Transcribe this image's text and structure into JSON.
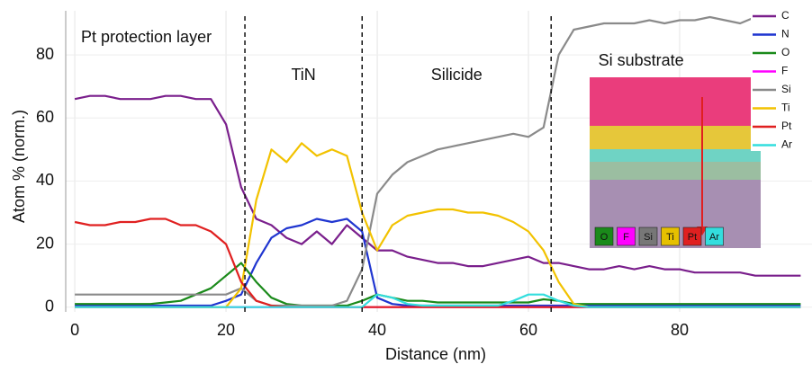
{
  "chart_data": {
    "type": "line",
    "x_label": "Distance (nm)",
    "y_label": "Atom % (norm.)",
    "xlim": [
      -1.2,
      97.5
    ],
    "ylim": [
      -1.5,
      94
    ],
    "xticks": [
      0,
      20,
      40,
      60,
      80
    ],
    "yticks": [
      0,
      20,
      40,
      60,
      80
    ],
    "grid": true,
    "legend": "top-right",
    "boundaries": [
      22.5,
      38,
      63
    ],
    "regions": [
      "Pt protection layer",
      "TiN",
      "Silicide",
      "Si substrate"
    ],
    "inset_labels": [
      "O",
      "F",
      "Si",
      "Ti",
      "Pt",
      "Ar"
    ],
    "x": [
      0,
      2,
      4,
      6,
      8,
      10,
      12,
      14,
      16,
      18,
      20,
      22,
      24,
      26,
      28,
      30,
      32,
      34,
      36,
      38,
      40,
      42,
      44,
      46,
      48,
      50,
      52,
      54,
      56,
      58,
      60,
      62,
      64,
      66,
      68,
      70,
      72,
      74,
      76,
      78,
      80,
      82,
      84,
      86,
      88,
      90,
      92,
      94,
      96
    ],
    "series": [
      {
        "name": "C",
        "color": "#7a1f8c",
        "values": [
          66,
          67,
          67,
          66,
          66,
          66,
          67,
          67,
          66,
          66,
          58,
          38,
          28,
          26,
          22,
          20,
          24,
          20,
          26,
          22,
          18,
          18,
          16,
          15,
          14,
          14,
          13,
          13,
          14,
          15,
          16,
          14,
          14,
          13,
          12,
          12,
          13,
          12,
          13,
          12,
          12,
          11,
          11,
          11,
          11,
          10,
          10,
          10,
          10
        ]
      },
      {
        "name": "N",
        "color": "#1f35d0",
        "values": [
          0.5,
          0.5,
          0.5,
          0.5,
          0.5,
          0.5,
          0.5,
          0.5,
          0.5,
          0.5,
          2,
          4,
          14,
          22,
          25,
          26,
          28,
          27,
          28,
          24,
          3,
          1,
          0.5,
          0.5,
          0.5,
          0.5,
          0.5,
          0.5,
          0.5,
          0.5,
          0.5,
          0.5,
          0.5,
          0.5,
          0.5,
          0.5,
          0.5,
          0.5,
          0.5,
          0.5,
          0.5,
          0.5,
          0.5,
          0.5,
          0.5,
          0.5,
          0.5,
          0.5,
          0.5
        ]
      },
      {
        "name": "O",
        "color": "#1a8a1a",
        "values": [
          1,
          1,
          1,
          1,
          1,
          1,
          1.5,
          2,
          4,
          6,
          10,
          14,
          8,
          3,
          1,
          0.5,
          0.5,
          0.5,
          0.5,
          2,
          4,
          3,
          2,
          2,
          1.5,
          1.5,
          1.5,
          1.5,
          1.5,
          1.5,
          1.5,
          2.5,
          2,
          1,
          1,
          1,
          1,
          1,
          1,
          1,
          1,
          1,
          1,
          1,
          1,
          1,
          1,
          1,
          1
        ]
      },
      {
        "name": "F",
        "color": "#ff00ff",
        "values": [
          0,
          0,
          0,
          0,
          0,
          0,
          0,
          0,
          0,
          0,
          0,
          0,
          0,
          0,
          0,
          0,
          0,
          0,
          0,
          0,
          0,
          0,
          0,
          0,
          0,
          0,
          0,
          0,
          0,
          0,
          0,
          0,
          0,
          0,
          0,
          0,
          0,
          0,
          0,
          0,
          0,
          0,
          0,
          0,
          0,
          0,
          0,
          0,
          0
        ]
      },
      {
        "name": "Si",
        "color": "#8a8a8a",
        "values": [
          4,
          4,
          4,
          4,
          4,
          4,
          4,
          4,
          4,
          4,
          4,
          6,
          2,
          0.5,
          0.5,
          0.5,
          0.5,
          0.5,
          2,
          12,
          36,
          42,
          46,
          48,
          50,
          51,
          52,
          53,
          54,
          55,
          54,
          57,
          80,
          88,
          89,
          90,
          90,
          90,
          91,
          90,
          91,
          91,
          92,
          91,
          90,
          92,
          91,
          92,
          91
        ]
      },
      {
        "name": "Ti",
        "color": "#f2c200",
        "values": [
          0,
          0,
          0,
          0,
          0,
          0,
          0,
          0,
          0,
          0,
          0,
          6,
          34,
          50,
          46,
          52,
          48,
          50,
          48,
          30,
          18,
          26,
          29,
          30,
          31,
          31,
          30,
          30,
          29,
          27,
          24,
          18,
          8,
          1,
          0,
          0,
          0,
          0,
          0,
          0,
          0,
          0,
          0,
          0,
          0,
          0,
          0,
          0,
          0
        ]
      },
      {
        "name": "Pt",
        "color": "#e02020",
        "values": [
          27,
          26,
          26,
          27,
          27,
          28,
          28,
          26,
          26,
          24,
          20,
          8,
          2,
          0.5,
          0,
          0,
          0,
          0,
          0,
          0,
          0,
          0,
          0,
          0,
          0,
          0,
          0,
          0,
          0,
          0,
          0,
          0,
          0,
          0,
          0,
          0,
          0,
          0,
          0,
          0,
          0,
          0,
          0,
          0,
          0,
          0,
          0,
          0,
          0
        ]
      },
      {
        "name": "Ar",
        "color": "#33dede",
        "values": [
          0,
          0,
          0,
          0,
          0,
          0,
          0,
          0,
          0,
          0,
          0,
          0,
          0,
          0,
          0,
          0,
          0,
          0,
          0,
          0,
          4,
          3,
          1,
          0.5,
          0.5,
          0.5,
          0.5,
          0.5,
          0.5,
          2,
          4,
          4,
          2,
          0.5,
          0,
          0,
          0,
          0,
          0,
          0,
          0,
          0,
          0,
          0,
          0,
          0,
          0,
          0,
          0
        ]
      }
    ]
  }
}
